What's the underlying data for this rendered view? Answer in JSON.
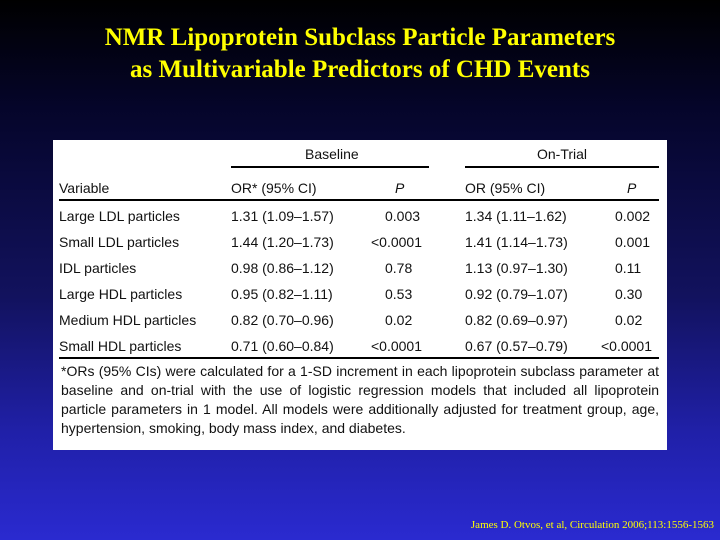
{
  "title": {
    "line1": "NMR Lipoprotein Subclass Particle Parameters",
    "line2": "as Multivariable Predictors of CHD Events"
  },
  "table": {
    "group_headers": {
      "baseline": "Baseline",
      "on_trial": "On-Trial"
    },
    "columns": {
      "variable": "Variable",
      "baseline_or": "OR* (95% CI)",
      "baseline_p": "P",
      "ontrial_or": "OR (95% CI)",
      "ontrial_p": "P"
    },
    "rows": [
      {
        "variable": "Large LDL particles",
        "baseline_or": "1.31 (1.09–1.57)",
        "baseline_p": "0.003",
        "ontrial_or": "1.34 (1.11–1.62)",
        "ontrial_p": "0.002"
      },
      {
        "variable": "Small LDL particles",
        "baseline_or": "1.44 (1.20–1.73)",
        "baseline_p": "<0.0001",
        "ontrial_or": "1.41 (1.14–1.73)",
        "ontrial_p": "0.001"
      },
      {
        "variable": "IDL particles",
        "baseline_or": "0.98 (0.86–1.12)",
        "baseline_p": "0.78",
        "ontrial_or": "1.13 (0.97–1.30)",
        "ontrial_p": "0.11"
      },
      {
        "variable": "Large HDL particles",
        "baseline_or": "0.95 (0.82–1.11)",
        "baseline_p": "0.53",
        "ontrial_or": "0.92 (0.79–1.07)",
        "ontrial_p": "0.30"
      },
      {
        "variable": "Medium HDL particles",
        "baseline_or": "0.82 (0.70–0.96)",
        "baseline_p": "0.02",
        "ontrial_or": "0.82 (0.69–0.97)",
        "ontrial_p": "0.02"
      },
      {
        "variable": "Small HDL particles",
        "baseline_or": "0.71 (0.60–0.84)",
        "baseline_p": "<0.0001",
        "ontrial_or": "0.67 (0.57–0.79)",
        "ontrial_p": "<0.0001"
      }
    ],
    "footnote": "*ORs (95% CIs) were calculated for a 1-SD increment in each lipoprotein subclass parameter at baseline and on-trial with the use of logistic regression models that included all lipoprotein particle parameters in 1 model. All models were additionally adjusted for treatment group, age, hypertension, smoking, body mass index, and diabetes."
  },
  "citation": "James D. Otvos, et al, Circulation  2006;113:1556-1563",
  "colors": {
    "title": "#ffff00",
    "citation": "#ffff00",
    "table_bg": "#ffffff"
  }
}
